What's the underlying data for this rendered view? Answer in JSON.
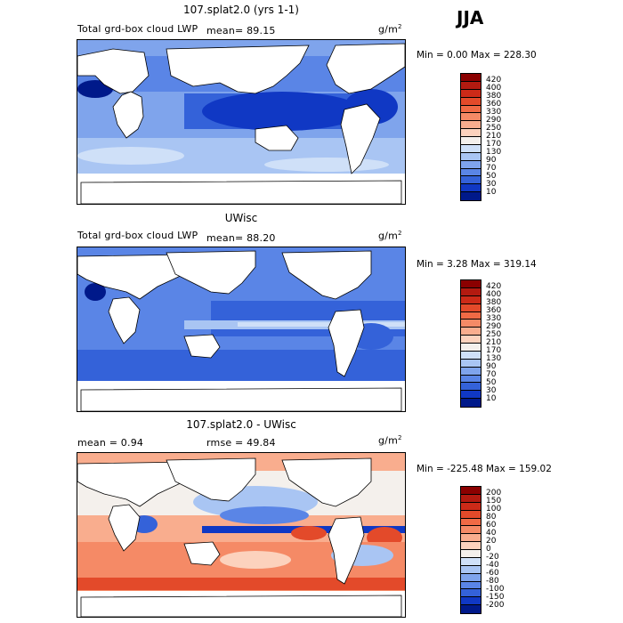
{
  "season": "JJA",
  "panels": [
    {
      "title": "107.splat2.0 (yrs 1-1)",
      "subtitle": "Total grd-box cloud LWP",
      "stat_left": "mean=  89.15",
      "units": "g/m",
      "units_exp": "2",
      "minmax": "Min =   0.00 Max = 228.30",
      "colorbar_labels": [
        "420",
        "400",
        "380",
        "360",
        "330",
        "290",
        "250",
        "210",
        "170",
        "130",
        "90",
        "70",
        "50",
        "30",
        "10"
      ],
      "colorbar_colors": [
        "#8b0000",
        "#b31a10",
        "#cc2a18",
        "#e34a2a",
        "#f06a45",
        "#f58a66",
        "#f9ad8e",
        "#fcd2bd",
        "#f4f0ec",
        "#cfe0f8",
        "#a9c5f3",
        "#7fa4ec",
        "#5a85e6",
        "#3462d9",
        "#1038c4",
        "#00198a"
      ]
    },
    {
      "title": "UWisc",
      "subtitle": "Total grd-box cloud LWP",
      "stat_left": "mean=  88.20",
      "units": "g/m",
      "units_exp": "2",
      "minmax": "Min =   3.28 Max = 319.14",
      "colorbar_labels": [
        "420",
        "400",
        "380",
        "360",
        "330",
        "290",
        "250",
        "210",
        "170",
        "130",
        "90",
        "70",
        "50",
        "30",
        "10"
      ],
      "colorbar_colors": [
        "#8b0000",
        "#b31a10",
        "#cc2a18",
        "#e34a2a",
        "#f06a45",
        "#f58a66",
        "#f9ad8e",
        "#fcd2bd",
        "#f4f0ec",
        "#cfe0f8",
        "#a9c5f3",
        "#7fa4ec",
        "#5a85e6",
        "#3462d9",
        "#1038c4",
        "#00198a"
      ]
    },
    {
      "title": "107.splat2.0 - UWisc",
      "subtitle": "mean =   0.94",
      "stat_left": "rmse =  49.84",
      "units": "g/m",
      "units_exp": "2",
      "minmax": "Min = -225.48 Max = 159.02",
      "colorbar_labels": [
        "200",
        "150",
        "100",
        "80",
        "60",
        "40",
        "20",
        "0",
        "-20",
        "-40",
        "-60",
        "-80",
        "-100",
        "-150",
        "-200"
      ],
      "colorbar_colors": [
        "#8b0000",
        "#b31a10",
        "#cc2a18",
        "#e34a2a",
        "#f06a45",
        "#f58a66",
        "#f9ad8e",
        "#fcd2bd",
        "#f4f0ec",
        "#cfe0f8",
        "#a9c5f3",
        "#7fa4ec",
        "#5a85e6",
        "#3462d9",
        "#1038c4",
        "#00198a"
      ]
    }
  ],
  "chart_data": {
    "type": "heatmap",
    "variable": "Total grd-box cloud LWP",
    "season": "JJA",
    "units": "g/m^2",
    "maps": [
      {
        "name": "107.splat2.0 (yrs 1-1)",
        "mean": 89.15,
        "min": 0.0,
        "max": 228.3,
        "levels": [
          10,
          30,
          50,
          70,
          90,
          130,
          170,
          210,
          250,
          290,
          330,
          360,
          380,
          400,
          420
        ]
      },
      {
        "name": "UWisc",
        "mean": 88.2,
        "min": 3.28,
        "max": 319.14,
        "levels": [
          10,
          30,
          50,
          70,
          90,
          130,
          170,
          210,
          250,
          290,
          330,
          360,
          380,
          400,
          420
        ]
      },
      {
        "name": "107.splat2.0 - UWisc",
        "mean": 0.94,
        "rmse": 49.84,
        "min": -225.48,
        "max": 159.02,
        "levels": [
          -200,
          -150,
          -100,
          -80,
          -60,
          -40,
          -20,
          0,
          20,
          40,
          60,
          80,
          100,
          150,
          200
        ]
      }
    ]
  }
}
